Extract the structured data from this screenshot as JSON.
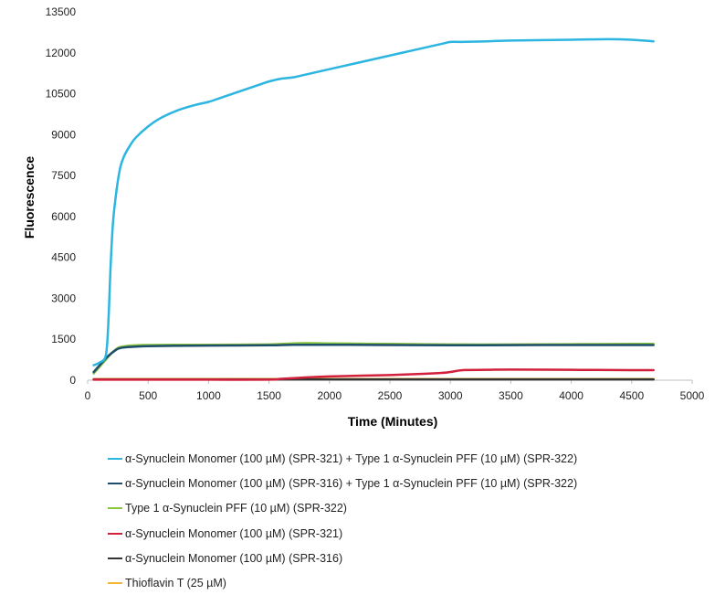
{
  "chart_data": {
    "type": "line",
    "title": "",
    "xlabel": "Time (Minutes)",
    "ylabel": "Fluorescence",
    "xlim": [
      0,
      5000
    ],
    "ylim": [
      0,
      13500
    ],
    "xticks": [
      "0",
      "500",
      "1000",
      "1500",
      "2000",
      "2500",
      "3000",
      "3500",
      "4000",
      "4500",
      "5000"
    ],
    "yticks": [
      "0",
      "1500",
      "3000",
      "4500",
      "6000",
      "7500",
      "9000",
      "10500",
      "12000",
      "13500"
    ],
    "grid": false,
    "legend_position": "bottom",
    "series": [
      {
        "name": "α-Synuclein Monomer (100 µM) (SPR-321) + Type 1 α-Synuclein PFF (10 µM) (SPR-322)",
        "color": "#2bb5e0",
        "x": [
          50,
          100,
          150,
          170,
          190,
          210,
          240,
          270,
          300,
          350,
          400,
          500,
          600,
          750,
          900,
          1000,
          1100,
          1200,
          1300,
          1400,
          1500,
          1600,
          1700,
          1800,
          2000,
          2200,
          2400,
          2600,
          2800,
          2950,
          3000,
          3100,
          3300,
          3500,
          4000,
          4300,
          4500,
          4680
        ],
        "y": [
          550,
          650,
          900,
          2000,
          4200,
          5800,
          7000,
          7800,
          8200,
          8600,
          8900,
          9300,
          9600,
          9900,
          10100,
          10200,
          10350,
          10500,
          10650,
          10800,
          10950,
          11050,
          11100,
          11200,
          11400,
          11600,
          11800,
          12000,
          12200,
          12350,
          12400,
          12400,
          12420,
          12450,
          12480,
          12500,
          12480,
          12420
        ]
      },
      {
        "name": "α-Synuclein Monomer (100 µM) (SPR-316) + Type 1 α-Synuclein PFF (10 µM) (SPR-322)",
        "color": "#1d4e6b",
        "x": [
          50,
          100,
          150,
          200,
          250,
          300,
          400,
          500,
          700,
          1000,
          1500,
          1700,
          2000,
          2500,
          3000,
          3500,
          4000,
          4500,
          4680
        ],
        "y": [
          300,
          550,
          800,
          1000,
          1150,
          1200,
          1230,
          1250,
          1260,
          1270,
          1280,
          1300,
          1300,
          1290,
          1280,
          1285,
          1290,
          1290,
          1290
        ]
      },
      {
        "name": "Type 1 α-Synuclein PFF (10 µM) (SPR-322)",
        "color": "#8cc63f",
        "x": [
          50,
          100,
          150,
          200,
          250,
          300,
          400,
          500,
          700,
          1000,
          1500,
          1700,
          1800,
          2000,
          2500,
          3000,
          3500,
          4000,
          4500,
          4680
        ],
        "y": [
          250,
          500,
          750,
          1000,
          1180,
          1240,
          1280,
          1290,
          1300,
          1300,
          1310,
          1350,
          1360,
          1350,
          1330,
          1310,
          1310,
          1320,
          1330,
          1330
        ]
      },
      {
        "name": "α-Synuclein Monomer (100 µM) (SPR-321)",
        "color": "#d21f3c",
        "x": [
          50,
          500,
          1000,
          1500,
          1600,
          1800,
          2000,
          2500,
          2900,
          3000,
          3100,
          3300,
          3500,
          4000,
          4500,
          4680
        ],
        "y": [
          20,
          20,
          20,
          20,
          50,
          100,
          140,
          190,
          260,
          300,
          370,
          380,
          390,
          380,
          370,
          370
        ]
      },
      {
        "name": "α-Synuclein Monomer (100 µM) (SPR-316)",
        "color": "#333333",
        "x": [
          50,
          1000,
          2000,
          3000,
          4000,
          4680
        ],
        "y": [
          30,
          30,
          30,
          30,
          30,
          30
        ]
      },
      {
        "name": "Thioflavin T (25 µM)",
        "color": "#f5b731",
        "x": [
          50,
          1000,
          2000,
          3000,
          4000,
          4680
        ],
        "y": [
          40,
          40,
          40,
          40,
          40,
          40
        ]
      }
    ]
  }
}
